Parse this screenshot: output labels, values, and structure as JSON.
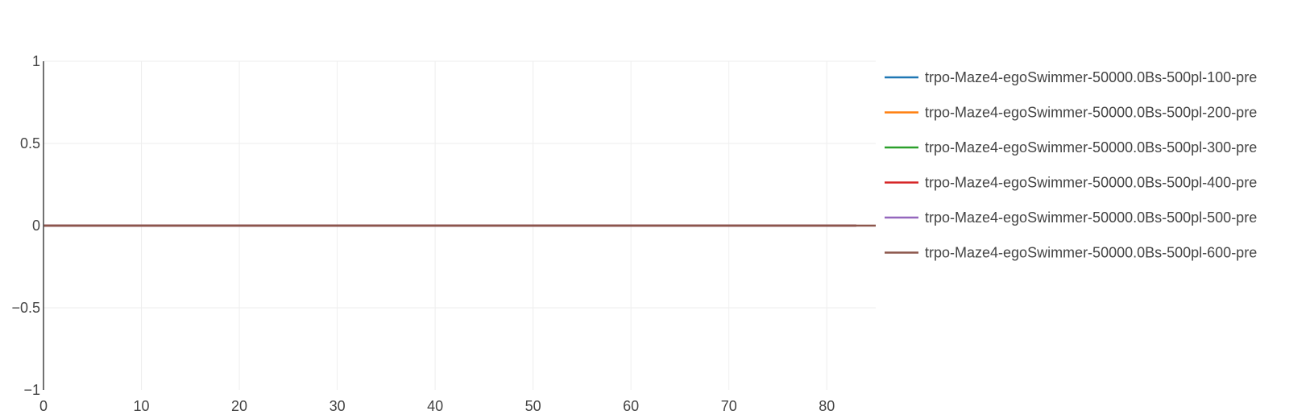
{
  "chart_data": {
    "type": "line",
    "title": "",
    "xlabel": "",
    "ylabel": "",
    "xlim": [
      0,
      85
    ],
    "ylim": [
      -1,
      1
    ],
    "xticks": [
      "0",
      "10",
      "20",
      "30",
      "40",
      "50",
      "60",
      "70",
      "80"
    ],
    "yticks": [
      "1",
      "0.5",
      "0",
      "−0.5",
      "−1"
    ],
    "grid": true,
    "legend_position": "right",
    "series": [
      {
        "name": "trpo-Maze4-egoSwimmer-50000.0Bs-500pl-100-pre",
        "color": "#1f77b4",
        "x": [
          0,
          83
        ],
        "y": [
          0,
          0
        ]
      },
      {
        "name": "trpo-Maze4-egoSwimmer-50000.0Bs-500pl-200-pre",
        "color": "#ff7f0e",
        "x": [
          0,
          83
        ],
        "y": [
          0,
          0
        ]
      },
      {
        "name": "trpo-Maze4-egoSwimmer-50000.0Bs-500pl-300-pre",
        "color": "#2ca02c",
        "x": [
          0,
          83
        ],
        "y": [
          0,
          0
        ]
      },
      {
        "name": "trpo-Maze4-egoSwimmer-50000.0Bs-500pl-400-pre",
        "color": "#d62728",
        "x": [
          0,
          83
        ],
        "y": [
          0,
          0
        ]
      },
      {
        "name": "trpo-Maze4-egoSwimmer-50000.0Bs-500pl-500-pre",
        "color": "#9467bd",
        "x": [
          0,
          83
        ],
        "y": [
          0,
          0
        ]
      },
      {
        "name": "trpo-Maze4-egoSwimmer-50000.0Bs-500pl-600-pre",
        "color": "#8c564b",
        "x": [
          0,
          85
        ],
        "y": [
          0,
          0
        ]
      }
    ]
  }
}
